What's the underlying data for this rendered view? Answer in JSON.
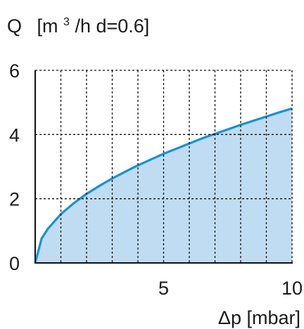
{
  "chart_data": {
    "type": "area",
    "title_prefix": "Q",
    "title_unit_open": "[m",
    "title_unit_sup": "3",
    "title_unit_rest": "/h d=0.6]",
    "xlabel": "Δp [mbar]",
    "xlim": [
      0,
      10
    ],
    "ylim": [
      0,
      6
    ],
    "x_ticks": [
      5,
      10
    ],
    "y_ticks": [
      0,
      2,
      4,
      6
    ],
    "x_grid_step": 1,
    "y_grid_step": 2,
    "grid": true,
    "fill_color": "#bfdcf3",
    "line_color": "#1a91d4",
    "series": [
      {
        "x": [
          0,
          0.25,
          0.5,
          1,
          1.5,
          2,
          2.5,
          3,
          3.5,
          4,
          4.5,
          5,
          5.5,
          6,
          6.5,
          7,
          7.5,
          8,
          8.5,
          9,
          9.5,
          10
        ],
        "values": [
          0,
          0.76,
          1.07,
          1.52,
          1.86,
          2.15,
          2.4,
          2.63,
          2.84,
          3.04,
          3.22,
          3.4,
          3.56,
          3.72,
          3.88,
          4.02,
          4.16,
          4.3,
          4.43,
          4.56,
          4.69,
          4.81
        ]
      }
    ]
  }
}
